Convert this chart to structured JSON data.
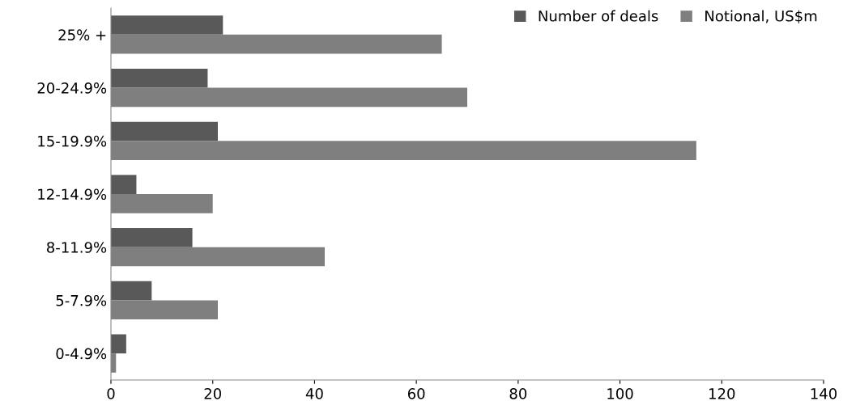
{
  "chart_data": {
    "type": "bar",
    "orientation": "horizontal",
    "categories": [
      "25% +",
      "20-24.9%",
      "15-19.9%",
      "12-14.9%",
      "8-11.9%",
      "5-7.9%",
      "0-4.9%"
    ],
    "series": [
      {
        "name": "Number of deals",
        "color": "#595959",
        "values": [
          22,
          19,
          21,
          5,
          16,
          8,
          3
        ]
      },
      {
        "name": "Notional, US$m",
        "color": "#7f7f7f",
        "values": [
          65,
          70,
          115,
          20,
          42,
          21,
          1
        ]
      }
    ],
    "xlim": [
      0,
      140
    ],
    "xticks": [
      0,
      20,
      40,
      60,
      80,
      100,
      120,
      140
    ],
    "grid": false,
    "legend": "top right"
  }
}
